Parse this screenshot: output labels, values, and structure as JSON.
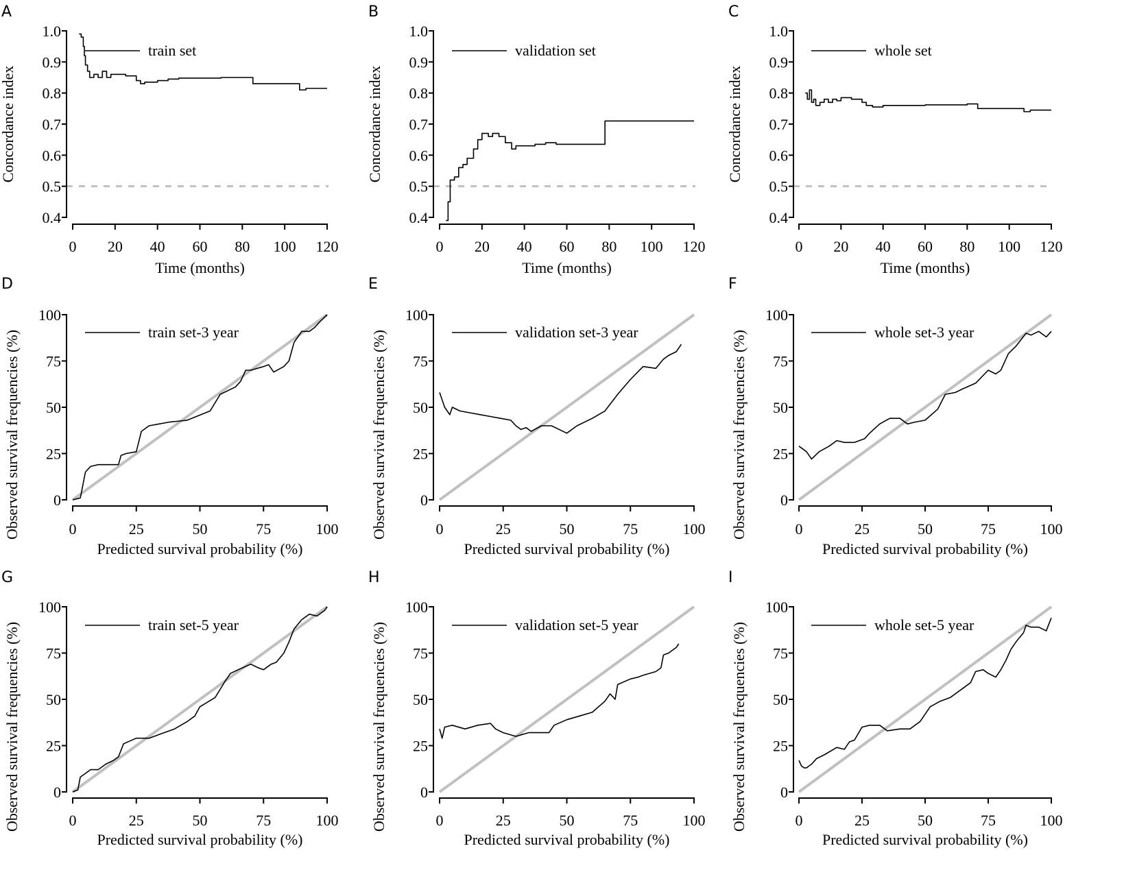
{
  "figure": {
    "description_free": true
  },
  "chart_data": [
    {
      "panel": "A",
      "type": "line",
      "xlabel": "Time (months)",
      "ylabel": "Concordance index",
      "xlim": [
        0,
        120
      ],
      "ylim": [
        0.4,
        1.0
      ],
      "xticks": [
        "0",
        "20",
        "40",
        "60",
        "80",
        "100",
        "120"
      ],
      "yticks": [
        "0.4",
        "0.5",
        "0.6",
        "0.7",
        "0.8",
        "0.9",
        "1.0"
      ],
      "reference": {
        "y": 0.5,
        "style": "dashed"
      },
      "series": [
        {
          "name": "train set",
          "step": true,
          "x": [
            3,
            4,
            5,
            5.5,
            6,
            7,
            8,
            10,
            12,
            14,
            16,
            18,
            20,
            25,
            30,
            32,
            34,
            40,
            45,
            50,
            70,
            85,
            100,
            107,
            110,
            120
          ],
          "y": [
            0.99,
            0.98,
            0.95,
            0.92,
            0.89,
            0.87,
            0.85,
            0.86,
            0.85,
            0.87,
            0.85,
            0.86,
            0.86,
            0.855,
            0.84,
            0.83,
            0.835,
            0.84,
            0.845,
            0.848,
            0.85,
            0.83,
            0.83,
            0.81,
            0.815,
            0.815
          ]
        }
      ]
    },
    {
      "panel": "B",
      "type": "line",
      "xlabel": "Time (months)",
      "ylabel": "Concordance index",
      "xlim": [
        0,
        120
      ],
      "ylim": [
        0.4,
        1.0
      ],
      "xticks": [
        "0",
        "20",
        "40",
        "60",
        "80",
        "100",
        "120"
      ],
      "yticks": [
        "0.4",
        "0.5",
        "0.6",
        "0.7",
        "0.8",
        "0.9",
        "1.0"
      ],
      "reference": {
        "y": 0.5,
        "style": "dashed"
      },
      "series": [
        {
          "name": "validation set",
          "step": true,
          "x": [
            3,
            4,
            5,
            7,
            9,
            11,
            13,
            16,
            18,
            20,
            23,
            25,
            28,
            31,
            34,
            36,
            38,
            41,
            45,
            50,
            55,
            65,
            77,
            78,
            120
          ],
          "y": [
            0.39,
            0.45,
            0.52,
            0.53,
            0.56,
            0.57,
            0.59,
            0.62,
            0.65,
            0.67,
            0.66,
            0.67,
            0.66,
            0.64,
            0.62,
            0.63,
            0.63,
            0.63,
            0.635,
            0.64,
            0.635,
            0.635,
            0.635,
            0.71,
            0.71
          ]
        }
      ]
    },
    {
      "panel": "C",
      "type": "line",
      "xlabel": "Time (months)",
      "ylabel": "Concordance index",
      "xlim": [
        0,
        120
      ],
      "ylim": [
        0.4,
        1.0
      ],
      "xticks": [
        "0",
        "20",
        "40",
        "60",
        "80",
        "100",
        "120"
      ],
      "yticks": [
        "0.4",
        "0.5",
        "0.6",
        "0.7",
        "0.8",
        "0.9",
        "1.0"
      ],
      "reference": {
        "y": 0.5,
        "style": "dashed"
      },
      "series": [
        {
          "name": "whole set",
          "step": true,
          "x": [
            3,
            4,
            5,
            6,
            7,
            8,
            10,
            12,
            14,
            16,
            18,
            20,
            25,
            30,
            32,
            35,
            40,
            50,
            60,
            80,
            85,
            100,
            107,
            110,
            120
          ],
          "y": [
            0.8,
            0.78,
            0.81,
            0.77,
            0.78,
            0.76,
            0.77,
            0.78,
            0.77,
            0.78,
            0.775,
            0.785,
            0.78,
            0.77,
            0.76,
            0.755,
            0.76,
            0.76,
            0.762,
            0.765,
            0.75,
            0.75,
            0.74,
            0.745,
            0.745
          ]
        }
      ]
    },
    {
      "panel": "D",
      "type": "line",
      "xlabel": "Predicted survival probability (%)",
      "ylabel": "Observed survival frequencies (%)",
      "xlim": [
        0,
        100
      ],
      "ylim": [
        0,
        100
      ],
      "xticks": [
        "0",
        "25",
        "50",
        "75",
        "100"
      ],
      "yticks": [
        "0",
        "25",
        "50",
        "75",
        "100"
      ],
      "reference": {
        "type": "diagonal",
        "from": [
          0,
          0
        ],
        "to": [
          100,
          100
        ]
      },
      "series": [
        {
          "name": "train set-3 year",
          "x": [
            0,
            3,
            5,
            7,
            10,
            15,
            18,
            19,
            21,
            25,
            27,
            30,
            34,
            38,
            45,
            54,
            58,
            64,
            66,
            68,
            70,
            75,
            77,
            79,
            83,
            85,
            86,
            87,
            90,
            93,
            95,
            97,
            100
          ],
          "y": [
            0,
            1,
            15,
            18,
            19,
            19,
            19,
            24,
            25,
            26,
            37,
            40,
            41,
            42,
            43,
            48,
            57,
            61,
            64,
            70,
            70,
            72,
            73,
            69,
            72,
            75,
            80,
            85,
            91,
            91,
            93,
            96,
            100
          ]
        }
      ]
    },
    {
      "panel": "E",
      "type": "line",
      "xlabel": "Predicted survival probability (%)",
      "ylabel": "Observed survival frequencies (%)",
      "xlim": [
        0,
        100
      ],
      "ylim": [
        0,
        100
      ],
      "xticks": [
        "0",
        "25",
        "50",
        "75",
        "100"
      ],
      "yticks": [
        "0",
        "25",
        "50",
        "75",
        "100"
      ],
      "reference": {
        "type": "diagonal",
        "from": [
          0,
          0
        ],
        "to": [
          100,
          100
        ]
      },
      "series": [
        {
          "name": "validation set-3 year",
          "x": [
            0,
            2,
            4,
            5,
            8,
            12,
            16,
            20,
            24,
            28,
            30,
            32,
            34,
            36,
            40,
            44,
            50,
            54,
            60,
            65,
            70,
            75,
            80,
            85,
            88,
            90,
            93,
            95
          ],
          "y": [
            58,
            50,
            46,
            50,
            48,
            47,
            46,
            45,
            44,
            43,
            40,
            38,
            39,
            37,
            40,
            40,
            36,
            40,
            44,
            48,
            57,
            65,
            72,
            71,
            76,
            78,
            80,
            84
          ]
        }
      ]
    },
    {
      "panel": "F",
      "type": "line",
      "xlabel": "Predicted survival probability (%)",
      "ylabel": "Observed survival frequencies (%)",
      "xlim": [
        0,
        100
      ],
      "ylim": [
        0,
        100
      ],
      "xticks": [
        "0",
        "25",
        "50",
        "75",
        "100"
      ],
      "yticks": [
        "0",
        "25",
        "50",
        "75",
        "100"
      ],
      "reference": {
        "type": "diagonal",
        "from": [
          0,
          0
        ],
        "to": [
          100,
          100
        ]
      },
      "series": [
        {
          "name": "whole set-3 year",
          "x": [
            0,
            3,
            5,
            8,
            12,
            15,
            18,
            22,
            26,
            28,
            32,
            36,
            40,
            43,
            46,
            50,
            55,
            58,
            62,
            65,
            70,
            75,
            78,
            80,
            83,
            86,
            90,
            92,
            95,
            98,
            100
          ],
          "y": [
            29,
            26,
            22,
            26,
            29,
            32,
            31,
            31,
            33,
            36,
            41,
            44,
            44,
            41,
            42,
            43,
            49,
            57,
            58,
            60,
            63,
            70,
            68,
            70,
            79,
            83,
            90,
            89,
            91,
            88,
            91
          ]
        }
      ]
    },
    {
      "panel": "G",
      "type": "line",
      "xlabel": "Predicted survival probability (%)",
      "ylabel": "Observed survival frequencies (%)",
      "xlim": [
        0,
        100
      ],
      "ylim": [
        0,
        100
      ],
      "xticks": [
        "0",
        "25",
        "50",
        "75",
        "100"
      ],
      "yticks": [
        "0",
        "25",
        "50",
        "75",
        "100"
      ],
      "reference": {
        "type": "diagonal",
        "from": [
          0,
          0
        ],
        "to": [
          100,
          100
        ]
      },
      "series": [
        {
          "name": "train set-5 year",
          "x": [
            0,
            2,
            3,
            5,
            7,
            10,
            13,
            16,
            18,
            20,
            25,
            30,
            34,
            40,
            45,
            48,
            50,
            56,
            60,
            62,
            65,
            70,
            73,
            75,
            78,
            80,
            83,
            85,
            87,
            90,
            93,
            96,
            99,
            100
          ],
          "y": [
            0,
            1,
            8,
            10,
            12,
            12,
            15,
            17,
            19,
            26,
            29,
            29,
            31,
            34,
            38,
            41,
            46,
            51,
            60,
            64,
            66,
            69,
            67,
            66,
            69,
            70,
            75,
            81,
            88,
            93,
            96,
            95,
            98,
            100
          ]
        }
      ]
    },
    {
      "panel": "H",
      "type": "line",
      "xlabel": "Predicted survival probability (%)",
      "ylabel": "Observed survival frequencies (%)",
      "xlim": [
        0,
        100
      ],
      "ylim": [
        0,
        100
      ],
      "xticks": [
        "0",
        "25",
        "50",
        "75",
        "100"
      ],
      "yticks": [
        "0",
        "25",
        "50",
        "75",
        "100"
      ],
      "reference": {
        "type": "diagonal",
        "from": [
          0,
          0
        ],
        "to": [
          100,
          100
        ]
      },
      "series": [
        {
          "name": "validation set-5 year",
          "x": [
            0,
            1,
            2,
            5,
            10,
            15,
            20,
            22,
            25,
            30,
            35,
            40,
            43,
            45,
            50,
            55,
            60,
            65,
            67,
            69,
            70,
            75,
            78,
            80,
            85,
            87,
            88,
            90,
            93,
            94
          ],
          "y": [
            34,
            29,
            35,
            36,
            34,
            36,
            37,
            34,
            32,
            30,
            32,
            32,
            32,
            36,
            39,
            41,
            43,
            49,
            53,
            50,
            58,
            61,
            62,
            63,
            65,
            67,
            74,
            75,
            78,
            80
          ]
        }
      ]
    },
    {
      "panel": "I",
      "type": "line",
      "xlabel": "Predicted survival probability (%)",
      "ylabel": "Observed survival frequencies (%)",
      "xlim": [
        0,
        100
      ],
      "ylim": [
        0,
        100
      ],
      "xticks": [
        "0",
        "25",
        "50",
        "75",
        "100"
      ],
      "yticks": [
        "0",
        "25",
        "50",
        "75",
        "100"
      ],
      "reference": {
        "type": "diagonal",
        "from": [
          0,
          0
        ],
        "to": [
          100,
          100
        ]
      },
      "series": [
        {
          "name": "whole set-5 year",
          "x": [
            0,
            1,
            2,
            3,
            5,
            7,
            10,
            15,
            18,
            20,
            22,
            25,
            28,
            32,
            35,
            40,
            44,
            48,
            52,
            56,
            60,
            65,
            68,
            70,
            73,
            75,
            78,
            80,
            82,
            84,
            86,
            89,
            90,
            92,
            95,
            98,
            100
          ],
          "y": [
            17,
            14,
            13,
            13,
            15,
            18,
            20,
            24,
            23,
            27,
            28,
            35,
            36,
            36,
            33,
            34,
            34,
            38,
            46,
            49,
            51,
            56,
            59,
            65,
            66,
            64,
            62,
            66,
            71,
            77,
            81,
            86,
            90,
            89,
            89,
            87,
            94
          ]
        }
      ]
    }
  ],
  "style": {
    "line_color": "#000000",
    "reference_color": "#c0c0c0"
  }
}
